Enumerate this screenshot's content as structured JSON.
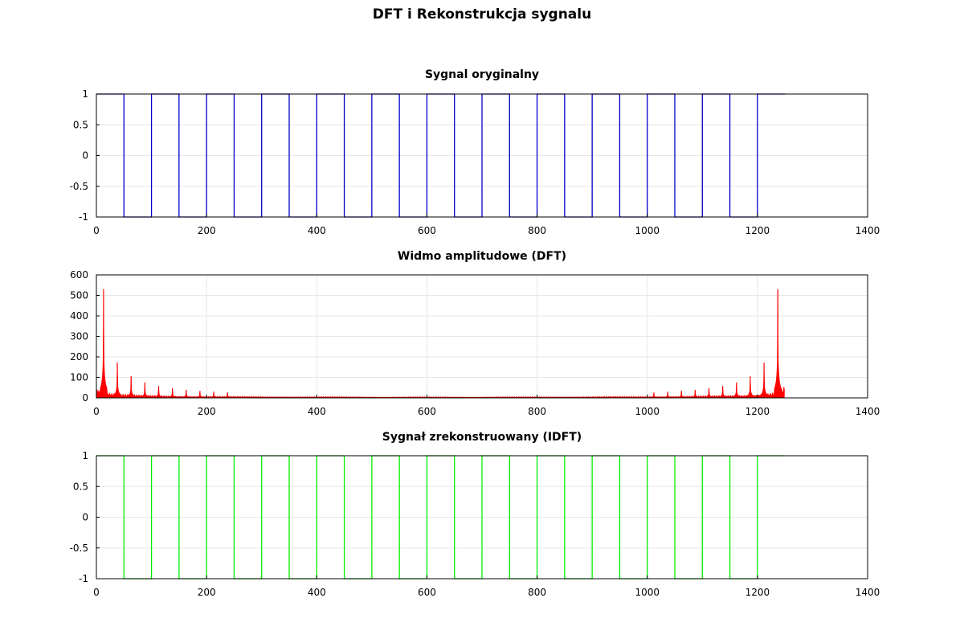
{
  "figure": {
    "title": "DFT i Rekonstrukcja sygnalu"
  },
  "chart_data": [
    {
      "type": "line",
      "title": "Sygnal oryginalny",
      "xlabel": "",
      "ylabel": "",
      "xlim": [
        0,
        1400
      ],
      "ylim": [
        -1,
        1
      ],
      "xticks": [
        0,
        200,
        400,
        600,
        800,
        1000,
        1200,
        1400
      ],
      "xtick_labels": [
        "0",
        "200",
        "400",
        "600",
        "800",
        "1000",
        "1200",
        "1400"
      ],
      "yticks": [
        1,
        0.5,
        0,
        -0.5,
        -1
      ],
      "ytick_labels": [
        "1",
        "0.5",
        "0",
        "-0.5",
        "-1"
      ],
      "grid": true,
      "color": "#0000cc",
      "signal": {
        "kind": "square",
        "period": 100,
        "high": 1,
        "low": -1,
        "n_samples": 1250,
        "start_high": true
      }
    },
    {
      "type": "line",
      "title": "Widmo amplitudowe (DFT)",
      "xlabel": "",
      "ylabel": "",
      "xlim": [
        0,
        1400
      ],
      "ylim": [
        0,
        600
      ],
      "xticks": [
        0,
        200,
        400,
        600,
        800,
        1000,
        1200,
        1400
      ],
      "xtick_labels": [
        "0",
        "200",
        "400",
        "600",
        "800",
        "1000",
        "1200",
        "1400"
      ],
      "yticks": [
        600,
        500,
        400,
        300,
        200,
        100,
        0
      ],
      "ytick_labels": [
        "600",
        "500",
        "400",
        "300",
        "200",
        "100",
        "0"
      ],
      "grid": true,
      "color": "#ff0000",
      "fill": true,
      "n_samples": 1250,
      "peaks": [
        {
          "x": 13,
          "y": 530
        },
        {
          "x": 38,
          "y": 172
        },
        {
          "x": 63,
          "y": 105
        },
        {
          "x": 88,
          "y": 75
        },
        {
          "x": 113,
          "y": 58
        },
        {
          "x": 138,
          "y": 47
        },
        {
          "x": 163,
          "y": 39
        },
        {
          "x": 188,
          "y": 34
        },
        {
          "x": 213,
          "y": 30
        },
        {
          "x": 238,
          "y": 26
        },
        {
          "x": 1012,
          "y": 26
        },
        {
          "x": 1037,
          "y": 30
        },
        {
          "x": 1062,
          "y": 34
        },
        {
          "x": 1087,
          "y": 39
        },
        {
          "x": 1112,
          "y": 47
        },
        {
          "x": 1137,
          "y": 58
        },
        {
          "x": 1162,
          "y": 75
        },
        {
          "x": 1187,
          "y": 105
        },
        {
          "x": 1212,
          "y": 172
        },
        {
          "x": 1237,
          "y": 530
        }
      ]
    },
    {
      "type": "line",
      "title": "Sygnał zrekonstruowany (IDFT)",
      "xlabel": "",
      "ylabel": "",
      "xlim": [
        0,
        1400
      ],
      "ylim": [
        -1,
        1
      ],
      "xticks": [
        0,
        200,
        400,
        600,
        800,
        1000,
        1200,
        1400
      ],
      "xtick_labels": [
        "0",
        "200",
        "400",
        "600",
        "800",
        "1000",
        "1200",
        "1400"
      ],
      "yticks": [
        1,
        0.5,
        0,
        -0.5,
        -1
      ],
      "ytick_labels": [
        "1",
        "0.5",
        "0",
        "-0.5",
        "-1"
      ],
      "grid": true,
      "color": "#00ee00",
      "signal": {
        "kind": "square",
        "period": 100,
        "high": 1,
        "low": -1,
        "n_samples": 1250,
        "start_high": true
      }
    }
  ]
}
